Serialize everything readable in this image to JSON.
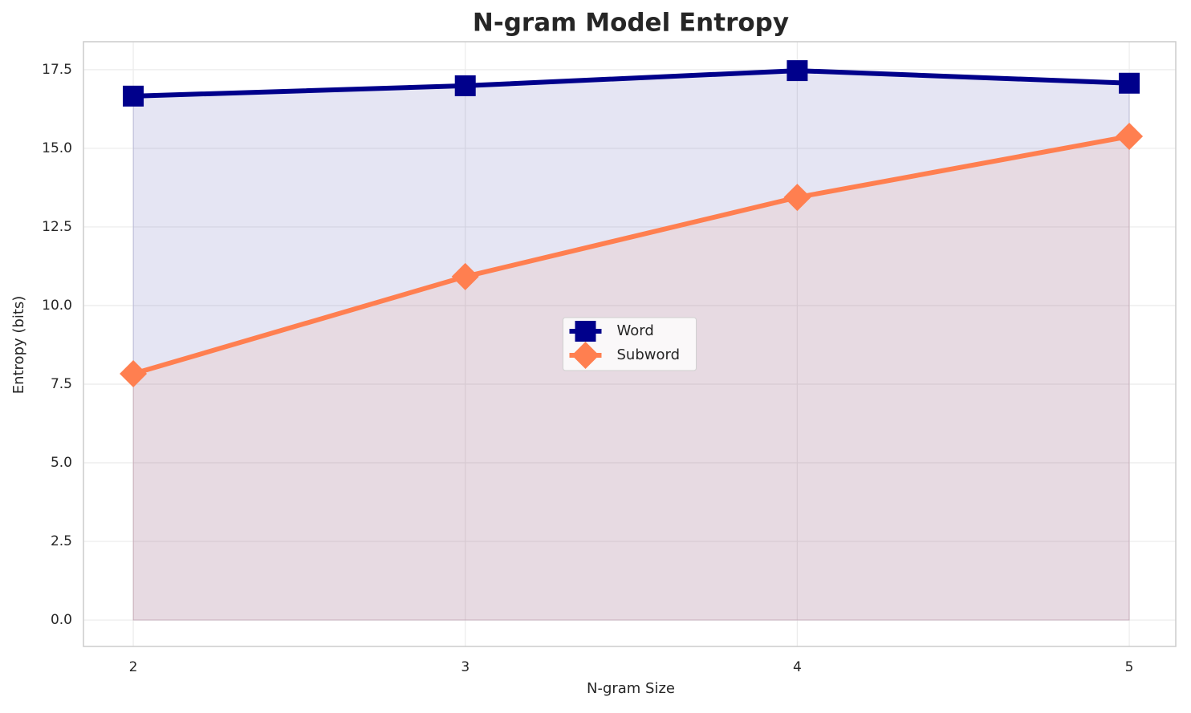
{
  "chart_data": {
    "type": "line",
    "title": "N-gram Model Entropy",
    "x_label": "N-gram Size",
    "y_label": "Entropy (bits)",
    "x": [
      2,
      3,
      4,
      5
    ],
    "series": [
      {
        "name": "Word",
        "color": "#00008b",
        "marker": "square",
        "values": [
          16.66,
          16.99,
          17.47,
          17.07
        ]
      },
      {
        "name": "Subword",
        "color": "#ff7f50",
        "marker": "diamond",
        "values": [
          7.83,
          10.92,
          13.44,
          15.38
        ]
      }
    ],
    "xlim": [
      1.85,
      5.14
    ],
    "xticks": [
      2,
      3,
      4,
      5
    ],
    "ylim": [
      -0.84,
      18.39
    ],
    "yticks": [
      {
        "value": 0,
        "label": "0.0"
      },
      {
        "value": 2.5,
        "label": "2.5"
      },
      {
        "value": 5,
        "label": "5.0"
      },
      {
        "value": 7.5,
        "label": "7.5"
      },
      {
        "value": 10,
        "label": "10.0"
      },
      {
        "value": 12.5,
        "label": "12.5"
      },
      {
        "value": 15,
        "label": "15.0"
      },
      {
        "value": 17.5,
        "label": "17.5"
      }
    ],
    "grid": true,
    "area_fill": true,
    "legend": "center"
  }
}
